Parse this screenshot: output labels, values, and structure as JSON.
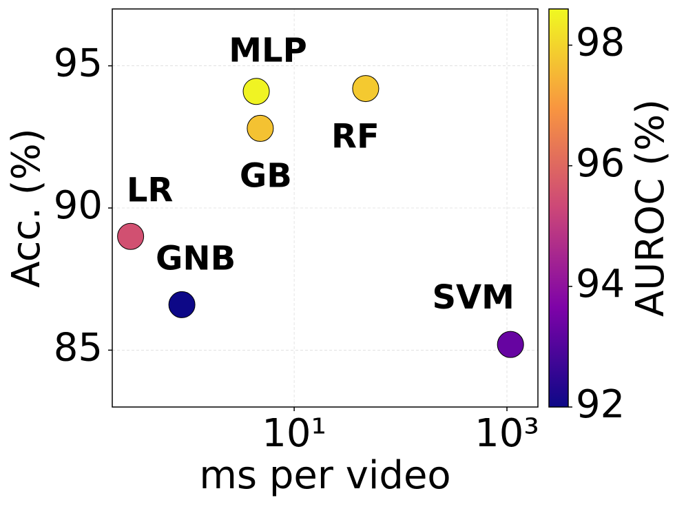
{
  "chart_data": {
    "type": "scatter",
    "x_label": "ms per video",
    "y_label": "Acc. (%)",
    "colorbar_label": "AUROC (%)",
    "xscale": "log",
    "xlim": [
      0.195,
      1955
    ],
    "xticks": [
      {
        "value": 10,
        "label": "10¹"
      },
      {
        "value": 1000,
        "label": "10³"
      }
    ],
    "ylim": [
      83,
      97
    ],
    "yticks": [
      85,
      90,
      95
    ],
    "grid": true,
    "colormap": "plasma",
    "clim": [
      92,
      98.6
    ],
    "cticks": [
      92,
      94,
      96,
      98
    ],
    "labels": [
      "LR",
      "GNB",
      "MLP",
      "GB",
      "RF",
      "SVM"
    ],
    "x": [
      0.29,
      0.88,
      4.4,
      4.8,
      47,
      1080
    ],
    "y": [
      89.0,
      86.6,
      94.1,
      92.8,
      94.2,
      85.2
    ],
    "auroc": [
      95.5,
      92.0,
      98.5,
      97.7,
      97.8,
      93.3
    ]
  }
}
